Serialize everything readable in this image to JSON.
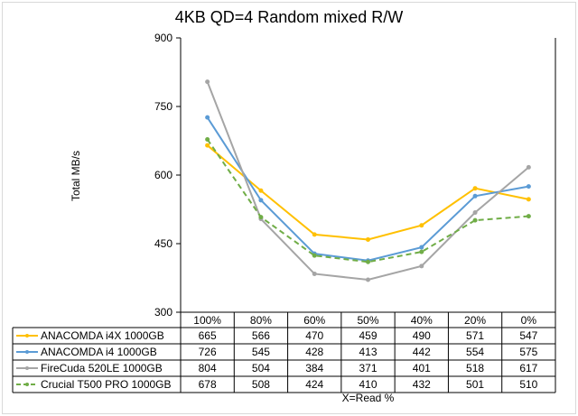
{
  "chart_data": {
    "type": "line",
    "title": "4KB QD=4 Random mixed R/W",
    "xlabel": "X=Read %",
    "ylabel": "Total MB/s",
    "categories": [
      "100%",
      "80%",
      "60%",
      "50%",
      "40%",
      "20%",
      "0%"
    ],
    "ylim": [
      300,
      900
    ],
    "yticks": [
      300,
      450,
      600,
      750,
      900
    ],
    "grid": false,
    "legend": "data-table",
    "series": [
      {
        "name": "ANACOMDA i4X 1000GB",
        "color": "#ffc000",
        "dashed": false,
        "values": [
          665,
          566,
          470,
          459,
          490,
          571,
          547
        ]
      },
      {
        "name": "ANACOMDA i4 1000GB",
        "color": "#5b9bd5",
        "dashed": false,
        "values": [
          726,
          545,
          428,
          413,
          442,
          554,
          575
        ]
      },
      {
        "name": "FireCuda 520LE 1000GB",
        "color": "#a5a5a5",
        "dashed": false,
        "values": [
          804,
          504,
          384,
          371,
          401,
          518,
          617
        ]
      },
      {
        "name": "Crucial T500 PRO 1000GB",
        "color": "#70ad47",
        "dashed": true,
        "values": [
          678,
          508,
          424,
          410,
          432,
          501,
          510
        ]
      }
    ]
  }
}
